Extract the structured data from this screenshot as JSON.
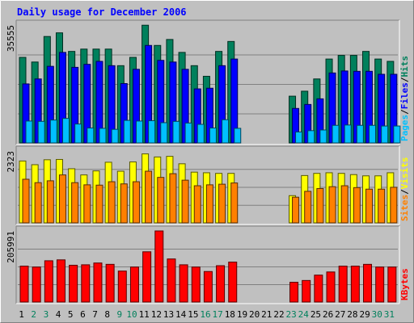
{
  "title": "Daily usage for December 2006",
  "colors": {
    "hits": "#00805c",
    "files": "#0000ff",
    "pages": "#00c0ff",
    "visits": "#ffff00",
    "sites": "#ff8000",
    "kbytes": "#ff0000",
    "title": "#0000ff",
    "weekend_day": "#00805c",
    "weekday_day": "#000000",
    "panel_bg": "#c0c0c0"
  },
  "chart_data": [
    {
      "type": "bar",
      "panel": "hits-files-pages",
      "max_label": "35555",
      "legend": [
        {
          "key": "pages",
          "label": "Pages"
        },
        {
          "key": "sep1",
          "label": "/"
        },
        {
          "key": "files",
          "label": "Files"
        },
        {
          "key": "sep2",
          "label": "/"
        },
        {
          "key": "hits",
          "label": "Hits"
        }
      ],
      "ylim": [
        0,
        35555
      ],
      "categories": [
        "1",
        "2",
        "3",
        "4",
        "5",
        "6",
        "7",
        "8",
        "9",
        "10",
        "11",
        "12",
        "13",
        "14",
        "15",
        "16",
        "17",
        "18",
        "19",
        "20",
        "21",
        "22",
        "23",
        "24",
        "25",
        "26",
        "27",
        "28",
        "29",
        "30",
        "31"
      ],
      "series": [
        {
          "name": "Hits",
          "key": "hits",
          "values": [
            25800,
            24400,
            32100,
            33200,
            27600,
            28300,
            28300,
            28300,
            23300,
            25800,
            35500,
            29400,
            31200,
            27300,
            23300,
            20100,
            27600,
            30600,
            0,
            0,
            0,
            0,
            14100,
            15600,
            19300,
            25300,
            26400,
            26400,
            27600,
            25300,
            24600
          ]
        },
        {
          "name": "Files",
          "key": "files",
          "values": [
            17800,
            19300,
            23100,
            27300,
            22800,
            23700,
            24600,
            23300,
            17900,
            22200,
            29400,
            24900,
            24400,
            22200,
            16300,
            16500,
            23300,
            25300,
            0,
            0,
            0,
            0,
            10400,
            11600,
            13300,
            21100,
            21700,
            21600,
            21600,
            20700,
            20700
          ]
        },
        {
          "name": "Pages",
          "key": "pages",
          "values": [
            6600,
            6500,
            6900,
            7400,
            5700,
            4500,
            4400,
            4100,
            6800,
            6600,
            6700,
            6100,
            6500,
            6000,
            5600,
            4500,
            7000,
            4400,
            0,
            0,
            0,
            0,
            3300,
            3700,
            3900,
            5300,
            5400,
            5300,
            5300,
            5100,
            5100
          ]
        }
      ]
    },
    {
      "type": "bar",
      "panel": "visits-sites",
      "max_label": "2323",
      "legend": [
        {
          "key": "sites",
          "label": "Sites"
        },
        {
          "key": "sep3",
          "label": "/"
        },
        {
          "key": "visits",
          "label": "Visits"
        }
      ],
      "ylim": [
        0,
        2323
      ],
      "categories": [
        "1",
        "2",
        "3",
        "4",
        "5",
        "6",
        "7",
        "8",
        "9",
        "10",
        "11",
        "12",
        "13",
        "14",
        "15",
        "16",
        "17",
        "18",
        "19",
        "20",
        "21",
        "22",
        "23",
        "24",
        "25",
        "26",
        "27",
        "28",
        "29",
        "30",
        "31"
      ],
      "series": [
        {
          "name": "Visits",
          "key": "visits",
          "values": [
            2000,
            1880,
            2040,
            2050,
            1750,
            1550,
            1680,
            1960,
            1670,
            1970,
            2230,
            2130,
            2150,
            1910,
            1640,
            1620,
            1600,
            1600,
            0,
            0,
            0,
            0,
            880,
            1530,
            1600,
            1620,
            1600,
            1560,
            1520,
            1520,
            1620
          ]
        },
        {
          "name": "Sites",
          "key": "sites",
          "values": [
            1410,
            1300,
            1360,
            1550,
            1300,
            1230,
            1220,
            1330,
            1260,
            1330,
            1670,
            1470,
            1590,
            1380,
            1200,
            1230,
            1250,
            1290,
            0,
            0,
            0,
            0,
            830,
            1020,
            1110,
            1170,
            1200,
            1140,
            1090,
            1090,
            1150
          ]
        }
      ]
    },
    {
      "type": "bar",
      "panel": "kbytes",
      "max_label": "205991",
      "legend": [
        {
          "key": "kbytes",
          "label": "KBytes"
        }
      ],
      "ylim": [
        0,
        205991
      ],
      "categories": [
        "1",
        "2",
        "3",
        "4",
        "5",
        "6",
        "7",
        "8",
        "9",
        "10",
        "11",
        "12",
        "13",
        "14",
        "15",
        "16",
        "17",
        "18",
        "19",
        "20",
        "21",
        "22",
        "23",
        "24",
        "25",
        "26",
        "27",
        "28",
        "29",
        "30",
        "31"
      ],
      "series": [
        {
          "name": "KBytes",
          "key": "kbytes",
          "values": [
            104000,
            101400,
            119600,
            122200,
            106600,
            107900,
            113100,
            109200,
            89700,
            101400,
            145600,
            205990,
            124800,
            107900,
            101400,
            88400,
            105300,
            115700,
            0,
            0,
            0,
            0,
            57200,
            62400,
            78000,
            87100,
            104000,
            104000,
            109200,
            101400,
            101400
          ]
        }
      ]
    }
  ],
  "days": [
    {
      "label": "1",
      "weekend": false
    },
    {
      "label": "2",
      "weekend": true
    },
    {
      "label": "3",
      "weekend": true
    },
    {
      "label": "4",
      "weekend": false
    },
    {
      "label": "5",
      "weekend": false
    },
    {
      "label": "6",
      "weekend": false
    },
    {
      "label": "7",
      "weekend": false
    },
    {
      "label": "8",
      "weekend": false
    },
    {
      "label": "9",
      "weekend": true
    },
    {
      "label": "10",
      "weekend": true
    },
    {
      "label": "11",
      "weekend": false
    },
    {
      "label": "12",
      "weekend": false
    },
    {
      "label": "13",
      "weekend": false
    },
    {
      "label": "14",
      "weekend": false
    },
    {
      "label": "15",
      "weekend": false
    },
    {
      "label": "16",
      "weekend": true
    },
    {
      "label": "17",
      "weekend": true
    },
    {
      "label": "18",
      "weekend": false
    },
    {
      "label": "19",
      "weekend": false
    },
    {
      "label": "20",
      "weekend": false
    },
    {
      "label": "21",
      "weekend": false
    },
    {
      "label": "22",
      "weekend": false
    },
    {
      "label": "23",
      "weekend": true
    },
    {
      "label": "24",
      "weekend": true
    },
    {
      "label": "25",
      "weekend": false
    },
    {
      "label": "26",
      "weekend": false
    },
    {
      "label": "27",
      "weekend": false
    },
    {
      "label": "28",
      "weekend": false
    },
    {
      "label": "29",
      "weekend": false
    },
    {
      "label": "30",
      "weekend": true
    },
    {
      "label": "31",
      "weekend": true
    }
  ]
}
